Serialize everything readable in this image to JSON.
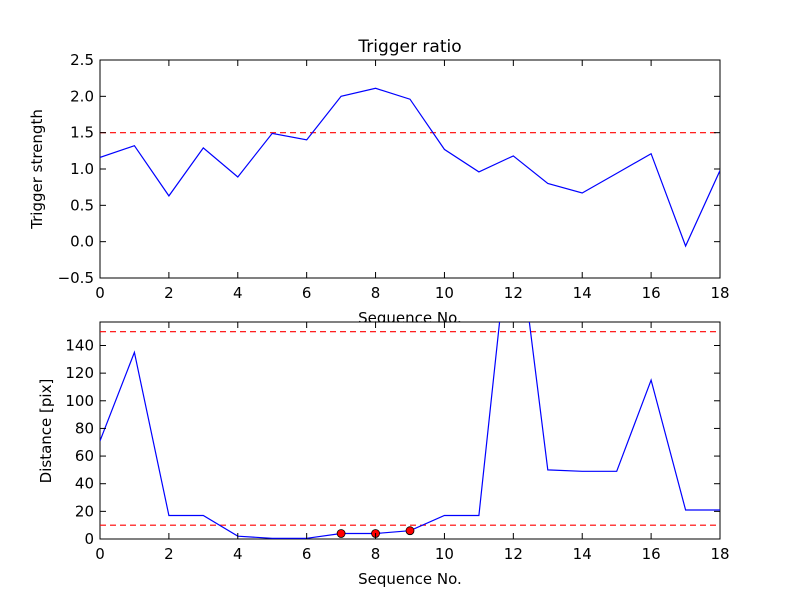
{
  "chart_data": [
    {
      "type": "line",
      "title": "Trigger ratio",
      "xlabel": "Sequence No.",
      "ylabel": "Trigger strength",
      "xlim": [
        0,
        18
      ],
      "ylim": [
        -0.5,
        2.5
      ],
      "xticks": [
        0,
        2,
        4,
        6,
        8,
        10,
        12,
        14,
        16,
        18
      ],
      "xtick_labels": [
        "0",
        "2",
        "4",
        "6",
        "8",
        "10",
        "12",
        "14",
        "16",
        "18"
      ],
      "yticks": [
        -0.5,
        0.0,
        0.5,
        1.0,
        1.5,
        2.0,
        2.5
      ],
      "ytick_labels": [
        "−0.5",
        "0.0",
        "0.5",
        "1.0",
        "1.5",
        "2.0",
        "2.5"
      ],
      "grid": false,
      "series": [
        {
          "color": "#0000ff",
          "x": [
            0,
            1,
            2,
            3,
            4,
            5,
            6,
            7,
            8,
            9,
            10,
            11,
            12,
            13,
            14,
            15,
            16,
            17,
            18
          ],
          "y": [
            1.16,
            1.32,
            0.63,
            1.29,
            0.89,
            1.49,
            1.4,
            2.0,
            2.11,
            1.96,
            1.27,
            0.96,
            1.18,
            0.8,
            0.67,
            0.94,
            1.21,
            -0.06,
            0.98
          ]
        }
      ],
      "reference_lines": [
        {
          "axis": "y",
          "value": 1.5,
          "color": "#ff0000",
          "style": "dashed"
        }
      ]
    },
    {
      "type": "line",
      "title": "",
      "xlabel": "Sequence No.",
      "ylabel": "Distance [pix]",
      "xlim": [
        0,
        18
      ],
      "ylim": [
        0,
        157
      ],
      "xticks": [
        0,
        2,
        4,
        6,
        8,
        10,
        12,
        14,
        16,
        18
      ],
      "xtick_labels": [
        "0",
        "2",
        "4",
        "6",
        "8",
        "10",
        "12",
        "14",
        "16",
        "18"
      ],
      "yticks": [
        0,
        20,
        40,
        60,
        80,
        100,
        120,
        140
      ],
      "ytick_labels": [
        "0",
        "20",
        "40",
        "60",
        "80",
        "100",
        "120",
        "140"
      ],
      "grid": false,
      "series": [
        {
          "color": "#0000ff",
          "x": [
            0,
            1,
            2,
            3,
            4,
            5,
            6,
            7,
            8,
            9,
            10,
            11,
            12,
            13,
            14,
            15,
            16,
            17,
            18
          ],
          "y": [
            71,
            135,
            17,
            17,
            2,
            0.5,
            0.5,
            4,
            4,
            6,
            17,
            17,
            250,
            50,
            49,
            49,
            115,
            21,
            21
          ]
        }
      ],
      "markers": {
        "color": "#ff0000",
        "x": [
          7,
          8,
          9
        ],
        "y": [
          4,
          4,
          6
        ]
      },
      "reference_lines": [
        {
          "axis": "y",
          "value": 150,
          "color": "#ff0000",
          "style": "dashed"
        },
        {
          "axis": "y",
          "value": 10,
          "color": "#ff0000",
          "style": "dashed"
        }
      ]
    }
  ]
}
